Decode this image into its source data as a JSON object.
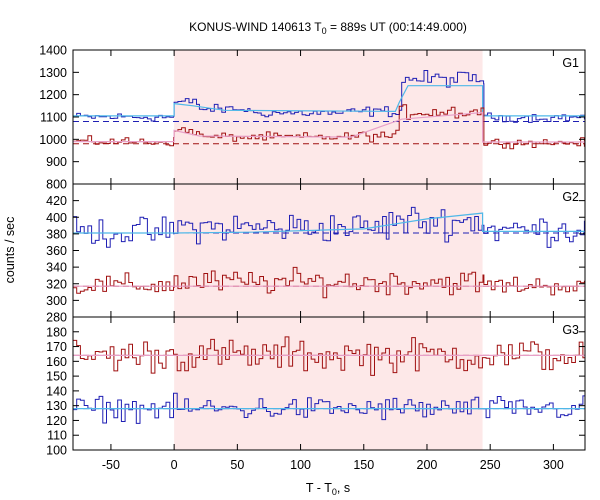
{
  "chart_data": {
    "type": "line",
    "title": {
      "prefix": "KONUS-WIND 140613 T",
      "sub": "0",
      "suffix": " = 889s UT (00:14:49.000)"
    },
    "xlabel": {
      "prefix": "T - T",
      "sub": "0",
      "suffix": ", s"
    },
    "ylabel": "counts / sec",
    "xlim": [
      -80,
      325
    ],
    "xticks": [
      -50,
      0,
      50,
      100,
      150,
      200,
      250,
      300
    ],
    "highlight": {
      "x_start": 0,
      "x_end": 244,
      "color": "#fde8e8"
    },
    "colors": {
      "blue": "#1f1fb4",
      "red": "#a01010",
      "fit_blue": "#4fb8e8",
      "fit_red": "#e8a0c8",
      "bg_dashed": "#1f1fb4",
      "bg_dashed_red": "#a01010"
    },
    "panels": [
      {
        "name": "G1",
        "ylim": [
          800,
          1400
        ],
        "yticks": [
          800,
          900,
          1000,
          1100,
          1200,
          1300,
          1400
        ],
        "series": [
          {
            "color_key": "blue",
            "bin": 2.944,
            "segments": [
              {
                "x0": -80,
                "x1": 0,
                "base": 1100,
                "noise": 12
              },
              {
                "x0": 0,
                "x1": 20,
                "base": 1165,
                "noise": 14
              },
              {
                "x0": 20,
                "x1": 60,
                "base": 1135,
                "noise": 12
              },
              {
                "x0": 60,
                "x1": 140,
                "base": 1118,
                "noise": 12
              },
              {
                "x0": 140,
                "x1": 180,
                "base": 1125,
                "noise": 14
              },
              {
                "x0": 180,
                "x1": 245,
                "base": 1270,
                "noise": 22
              },
              {
                "x0": 245,
                "x1": 325,
                "base": 1098,
                "noise": 12
              }
            ],
            "fit": [
              [
                -80,
                1105
              ],
              [
                0,
                1105
              ],
              [
                0,
                1160
              ],
              [
                15,
                1150
              ],
              [
                40,
                1130
              ],
              [
                175,
                1125
              ],
              [
                178,
                1165
              ],
              [
                185,
                1240
              ],
              [
                244,
                1240
              ],
              [
                244,
                1105
              ],
              [
                325,
                1105
              ]
            ],
            "bg_dashed": 1080
          },
          {
            "color_key": "red",
            "bin": 2.944,
            "segments": [
              {
                "x0": -80,
                "x1": 0,
                "base": 990,
                "noise": 12
              },
              {
                "x0": 0,
                "x1": 20,
                "base": 1040,
                "noise": 14
              },
              {
                "x0": 20,
                "x1": 140,
                "base": 1010,
                "noise": 12
              },
              {
                "x0": 140,
                "x1": 178,
                "base": 1015,
                "noise": 14
              },
              {
                "x0": 178,
                "x1": 245,
                "base": 1125,
                "noise": 22
              },
              {
                "x0": 245,
                "x1": 325,
                "base": 985,
                "noise": 12
              }
            ],
            "fit": [
              [
                -80,
                990
              ],
              [
                0,
                990
              ],
              [
                0,
                1040
              ],
              [
                20,
                1015
              ],
              [
                140,
                1010
              ],
              [
                180,
                1090
              ],
              [
                244,
                1120
              ],
              [
                244,
                988
              ],
              [
                325,
                988
              ]
            ],
            "bg_dashed": 980
          }
        ]
      },
      {
        "name": "G2",
        "ylim": [
          280,
          440
        ],
        "yticks": [
          280,
          300,
          320,
          340,
          360,
          380,
          400,
          420
        ],
        "series": [
          {
            "color_key": "blue",
            "bin": 2.944,
            "segments": [
              {
                "x0": -80,
                "x1": 0,
                "base": 382,
                "noise": 11
              },
              {
                "x0": 0,
                "x1": 170,
                "base": 388,
                "noise": 11
              },
              {
                "x0": 170,
                "x1": 245,
                "base": 395,
                "noise": 12
              },
              {
                "x0": 245,
                "x1": 325,
                "base": 385,
                "noise": 11
              }
            ],
            "fit": [
              [
                -80,
                381
              ],
              [
                0,
                381
              ],
              [
                60,
                382
              ],
              [
                150,
                386
              ],
              [
                200,
                398
              ],
              [
                244,
                405
              ],
              [
                244,
                383
              ],
              [
                325,
                383
              ]
            ],
            "bg_dashed": 381
          },
          {
            "color_key": "red",
            "bin": 2.944,
            "segments": [
              {
                "x0": -80,
                "x1": 0,
                "base": 318,
                "noise": 8
              },
              {
                "x0": 0,
                "x1": 245,
                "base": 322,
                "noise": 9
              },
              {
                "x0": 245,
                "x1": 325,
                "base": 318,
                "noise": 7
              }
            ],
            "fit": [
              [
                -80,
                317
              ],
              [
                325,
                317
              ]
            ],
            "bg_dashed": 317
          }
        ]
      },
      {
        "name": "G3",
        "ylim": [
          100,
          190
        ],
        "yticks": [
          100,
          110,
          120,
          130,
          140,
          150,
          160,
          170,
          180
        ],
        "series": [
          {
            "color_key": "red",
            "bin": 2.944,
            "segments": [
              {
                "x0": -80,
                "x1": 325,
                "base": 164,
                "noise": 7
              }
            ],
            "fit": [
              [
                -80,
                164
              ],
              [
                325,
                164
              ]
            ],
            "bg_dashed": 164
          },
          {
            "color_key": "blue",
            "bin": 2.944,
            "segments": [
              {
                "x0": -80,
                "x1": 325,
                "base": 128,
                "noise": 5
              }
            ],
            "fit": [
              [
                -80,
                128
              ],
              [
                325,
                128
              ]
            ],
            "bg_dashed": 128
          }
        ]
      }
    ]
  }
}
